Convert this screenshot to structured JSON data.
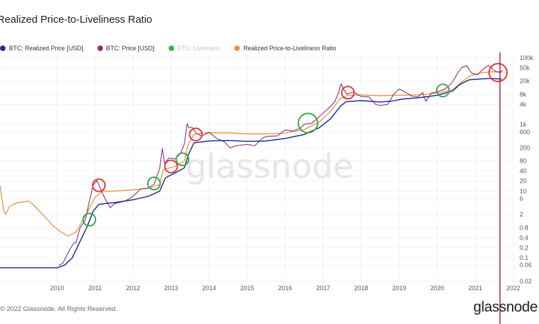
{
  "title": "Realized Price-to-Liveliness Ratio",
  "legend": [
    {
      "name": "BTC: Realized Price [USD]",
      "color": "#1a2d8f",
      "active": true
    },
    {
      "name": "BTC: Price [USD]",
      "color": "#8a2a7e",
      "active": true
    },
    {
      "name": "BTC: Liveliness",
      "color": "#2fb84a",
      "active": false
    },
    {
      "name": "Realized Price-to-Liveliness Ratio",
      "color": "#e8923f",
      "active": true
    }
  ],
  "watermark": "glassnode",
  "footer": "© 2022 Glassnode. All Rights Reserved.",
  "brand": "glassnode",
  "colors": {
    "realized_price": "#1a2d8f",
    "price": "#8a2a7e",
    "ratio": "#e8923f",
    "circle_red": "#e53935",
    "circle_green": "#3aa847",
    "vertical_line": "#a0195a"
  },
  "chart_data": {
    "type": "line",
    "title": "Realized Price-to-Liveliness Ratio",
    "x_ticks": [
      "2010",
      "2011",
      "2012",
      "2013",
      "2014",
      "2015",
      "2016",
      "2017",
      "2018",
      "2019",
      "2020",
      "2021",
      "2022"
    ],
    "y_scale": "log",
    "y_ticks": [
      "0.02",
      "0.06",
      "0.1",
      "0.2",
      "0.4",
      "0.8",
      "2",
      "6",
      "10",
      "20",
      "40",
      "80",
      "200",
      "600",
      "1k",
      "4k",
      "8k",
      "20k",
      "50k",
      "100k"
    ],
    "ylim": [
      0.02,
      100000
    ],
    "grid": true,
    "legend_position": "top-left",
    "series": [
      {
        "name": "BTC: Realized Price [USD]",
        "points": [
          [
            2009.0,
            0.05
          ],
          [
            2010.5,
            0.05
          ],
          [
            2010.7,
            0.06
          ],
          [
            2010.9,
            0.1
          ],
          [
            2011.1,
            0.3
          ],
          [
            2011.3,
            0.9
          ],
          [
            2011.45,
            2.5
          ],
          [
            2011.6,
            4
          ],
          [
            2011.8,
            4.3
          ],
          [
            2012.0,
            4.5
          ],
          [
            2012.5,
            5.5
          ],
          [
            2012.9,
            7
          ],
          [
            2013.2,
            10
          ],
          [
            2013.35,
            25
          ],
          [
            2013.6,
            35
          ],
          [
            2013.85,
            50
          ],
          [
            2013.95,
            120
          ],
          [
            2014.1,
            280
          ],
          [
            2014.5,
            320
          ],
          [
            2015.0,
            330
          ],
          [
            2015.5,
            310
          ],
          [
            2016.0,
            320
          ],
          [
            2016.5,
            380
          ],
          [
            2017.0,
            500
          ],
          [
            2017.4,
            800
          ],
          [
            2017.7,
            1500
          ],
          [
            2017.95,
            3500
          ],
          [
            2018.1,
            4800
          ],
          [
            2018.5,
            5200
          ],
          [
            2019.0,
            4700
          ],
          [
            2019.3,
            5000
          ],
          [
            2019.6,
            5800
          ],
          [
            2020.0,
            6300
          ],
          [
            2020.5,
            7500
          ],
          [
            2020.9,
            10000
          ],
          [
            2021.1,
            16000
          ],
          [
            2021.35,
            22000
          ],
          [
            2021.6,
            23000
          ],
          [
            2021.9,
            24000
          ],
          [
            2022.05,
            23500
          ],
          [
            2022.2,
            23000
          ]
        ]
      },
      {
        "name": "BTC: Price [USD]",
        "points": [
          [
            2010.55,
            0.06
          ],
          [
            2010.65,
            0.07
          ],
          [
            2010.85,
            0.2
          ],
          [
            2010.95,
            0.3
          ],
          [
            2011.0,
            0.3
          ],
          [
            2011.1,
            0.8
          ],
          [
            2011.25,
            1.5
          ],
          [
            2011.35,
            5
          ],
          [
            2011.45,
            15
          ],
          [
            2011.55,
            20
          ],
          [
            2011.62,
            13
          ],
          [
            2011.75,
            6
          ],
          [
            2011.9,
            3
          ],
          [
            2012.0,
            4
          ],
          [
            2012.3,
            5
          ],
          [
            2012.5,
            7
          ],
          [
            2012.7,
            12
          ],
          [
            2012.9,
            13
          ],
          [
            2013.05,
            17
          ],
          [
            2013.2,
            50
          ],
          [
            2013.27,
            200
          ],
          [
            2013.33,
            70
          ],
          [
            2013.45,
            100
          ],
          [
            2013.6,
            90
          ],
          [
            2013.75,
            130
          ],
          [
            2013.85,
            250
          ],
          [
            2013.92,
            1000
          ],
          [
            2013.97,
            750
          ],
          [
            2014.05,
            800
          ],
          [
            2014.15,
            550
          ],
          [
            2014.3,
            450
          ],
          [
            2014.5,
            600
          ],
          [
            2014.7,
            400
          ],
          [
            2014.9,
            320
          ],
          [
            2015.05,
            210
          ],
          [
            2015.2,
            240
          ],
          [
            2015.5,
            260
          ],
          [
            2015.7,
            230
          ],
          [
            2015.9,
            380
          ],
          [
            2016.0,
            420
          ],
          [
            2016.3,
            430
          ],
          [
            2016.5,
            650
          ],
          [
            2016.7,
            600
          ],
          [
            2016.9,
            750
          ],
          [
            2017.0,
            1000
          ],
          [
            2017.2,
            1100
          ],
          [
            2017.4,
            1800
          ],
          [
            2017.55,
            2600
          ],
          [
            2017.65,
            3300
          ],
          [
            2017.8,
            5000
          ],
          [
            2017.9,
            9000
          ],
          [
            2017.97,
            17000
          ],
          [
            2018.05,
            11000
          ],
          [
            2018.12,
            8000
          ],
          [
            2018.3,
            9000
          ],
          [
            2018.5,
            6500
          ],
          [
            2018.7,
            6400
          ],
          [
            2018.88,
            3800
          ],
          [
            2019.0,
            3600
          ],
          [
            2019.2,
            4000
          ],
          [
            2019.35,
            8000
          ],
          [
            2019.5,
            12000
          ],
          [
            2019.65,
            10000
          ],
          [
            2019.85,
            7300
          ],
          [
            2020.0,
            7200
          ],
          [
            2020.12,
            9500
          ],
          [
            2020.2,
            5000
          ],
          [
            2020.35,
            8800
          ],
          [
            2020.5,
            9200
          ],
          [
            2020.7,
            11000
          ],
          [
            2020.85,
            15000
          ],
          [
            2020.95,
            22000
          ],
          [
            2021.05,
            35000
          ],
          [
            2021.15,
            50000
          ],
          [
            2021.28,
            58000
          ],
          [
            2021.4,
            36000
          ],
          [
            2021.55,
            32000
          ],
          [
            2021.7,
            47000
          ],
          [
            2021.85,
            63000
          ],
          [
            2021.95,
            48000
          ],
          [
            2022.05,
            40000
          ],
          [
            2022.15,
            38000
          ],
          [
            2022.22,
            42000
          ]
        ]
      },
      {
        "name": "Realized Price-to-Liveliness Ratio",
        "points": [
          [
            2009.0,
            15
          ],
          [
            2009.05,
            6
          ],
          [
            2009.1,
            2.5
          ],
          [
            2009.15,
            2
          ],
          [
            2009.25,
            3.5
          ],
          [
            2009.45,
            4.5
          ],
          [
            2009.75,
            5
          ],
          [
            2009.85,
            4.2
          ],
          [
            2010.0,
            2.8
          ],
          [
            2010.2,
            1.6
          ],
          [
            2010.4,
            0.9
          ],
          [
            2010.6,
            0.6
          ],
          [
            2010.8,
            0.45
          ],
          [
            2011.0,
            0.6
          ],
          [
            2011.2,
            1.5
          ],
          [
            2011.35,
            3
          ],
          [
            2011.5,
            6.5
          ],
          [
            2011.7,
            10
          ],
          [
            2012.0,
            10
          ],
          [
            2012.5,
            11
          ],
          [
            2012.9,
            12
          ],
          [
            2013.2,
            16
          ],
          [
            2013.3,
            45
          ],
          [
            2013.6,
            55
          ],
          [
            2013.85,
            80
          ],
          [
            2013.95,
            250
          ],
          [
            2014.1,
            500
          ],
          [
            2014.4,
            560
          ],
          [
            2015.0,
            560
          ],
          [
            2015.5,
            520
          ],
          [
            2016.0,
            520
          ],
          [
            2016.5,
            550
          ],
          [
            2017.0,
            700
          ],
          [
            2017.4,
            1200
          ],
          [
            2017.7,
            2500
          ],
          [
            2017.95,
            6000
          ],
          [
            2018.15,
            7500
          ],
          [
            2018.5,
            7700
          ],
          [
            2019.0,
            7300
          ],
          [
            2019.5,
            7500
          ],
          [
            2020.0,
            7700
          ],
          [
            2020.5,
            8700
          ],
          [
            2020.9,
            11000
          ],
          [
            2021.15,
            19000
          ],
          [
            2021.4,
            30000
          ],
          [
            2021.7,
            36000
          ],
          [
            2021.95,
            38000
          ],
          [
            2022.1,
            37000
          ],
          [
            2022.22,
            36500
          ]
        ]
      }
    ],
    "annotations": [
      {
        "type": "circle",
        "color": "red",
        "x": 2011.6,
        "y": 15
      },
      {
        "type": "circle",
        "color": "green",
        "x": 2011.35,
        "y": 1.4
      },
      {
        "type": "circle",
        "color": "green",
        "x": 2013.05,
        "y": 17
      },
      {
        "type": "circle",
        "color": "red",
        "x": 2013.5,
        "y": 55
      },
      {
        "type": "circle",
        "color": "green",
        "x": 2013.8,
        "y": 90
      },
      {
        "type": "circle",
        "color": "red",
        "x": 2014.15,
        "y": 500
      },
      {
        "type": "circle",
        "color": "green",
        "x": 2017.1,
        "y": 1100
      },
      {
        "type": "circle",
        "color": "red",
        "x": 2018.15,
        "y": 9000
      },
      {
        "type": "circle",
        "color": "green",
        "x": 2020.65,
        "y": 10500
      },
      {
        "type": "circle",
        "color": "red",
        "x": 2022.1,
        "y": 36000
      },
      {
        "type": "vline",
        "x": 2022.15
      }
    ]
  }
}
